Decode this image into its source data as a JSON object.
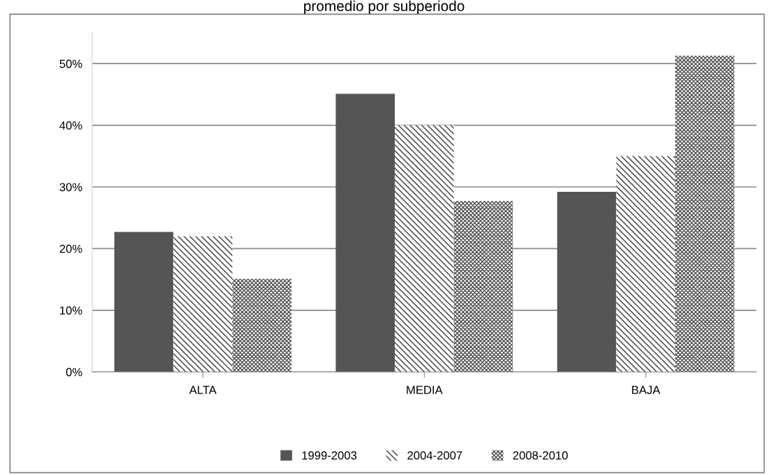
{
  "chart_data": {
    "type": "bar",
    "title": "promedio por subperiodo",
    "categories": [
      "ALTA",
      "MEDIA",
      "BAJA"
    ],
    "series": [
      {
        "name": "1999-2003",
        "color": "#555555",
        "values": [
          22.7,
          45.1,
          29.2
        ]
      },
      {
        "name": "2004-2007",
        "color": "#3a3a3a",
        "values": [
          22.0,
          40.0,
          35.0
        ]
      },
      {
        "name": "2008-2010",
        "color": "#505050",
        "values": [
          15.1,
          27.7,
          51.3
        ]
      }
    ],
    "ylim": [
      0,
      55
    ],
    "yticks": [
      {
        "value": 0,
        "label": "0%"
      },
      {
        "value": 10,
        "label": "10%"
      },
      {
        "value": 20,
        "label": "20%"
      },
      {
        "value": 30,
        "label": "30%"
      },
      {
        "value": 40,
        "label": "40%"
      },
      {
        "value": 50,
        "label": "50%"
      }
    ],
    "grid": "y",
    "legend": "bottom"
  }
}
